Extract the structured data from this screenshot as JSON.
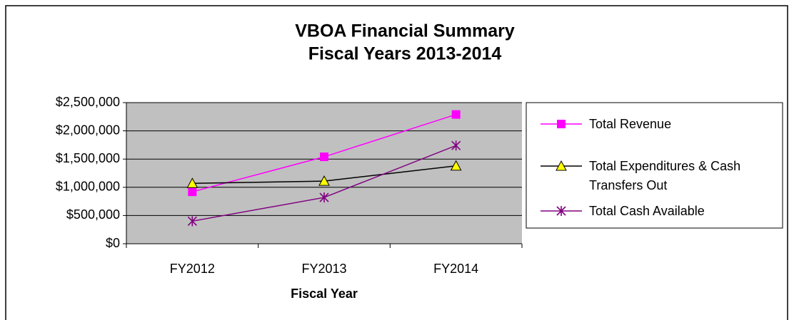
{
  "chart_data": {
    "type": "line",
    "title": [
      "VBOA Financial Summary",
      "Fiscal Years 2013-2014"
    ],
    "x_label": "Fiscal Year",
    "categories": [
      "FY2012",
      "FY2013",
      "FY2014"
    ],
    "series": [
      {
        "name": "Total Revenue",
        "color": "#ff00ff",
        "marker": "square",
        "values": [
          920000,
          1540000,
          2290000
        ]
      },
      {
        "name": "Total Expenditures & Cash Transfers Out",
        "color": "#000000",
        "marker": "triangle",
        "values": [
          1070000,
          1110000,
          1380000
        ]
      },
      {
        "name": "Total Cash Available",
        "color": "#800080",
        "marker": "star",
        "values": [
          400000,
          820000,
          1740000
        ]
      }
    ],
    "ylim": [
      0,
      2500000
    ],
    "yticks": [
      {
        "value": 0,
        "label": "$0"
      },
      {
        "value": 500000,
        "label": "$500,000"
      },
      {
        "value": 1000000,
        "label": "$1,000,000"
      },
      {
        "value": 1500000,
        "label": "$1,500,000"
      },
      {
        "value": 2000000,
        "label": "$2,000,000"
      },
      {
        "value": 2500000,
        "label": "$2,500,000"
      }
    ],
    "grid": true,
    "legend": "right"
  }
}
